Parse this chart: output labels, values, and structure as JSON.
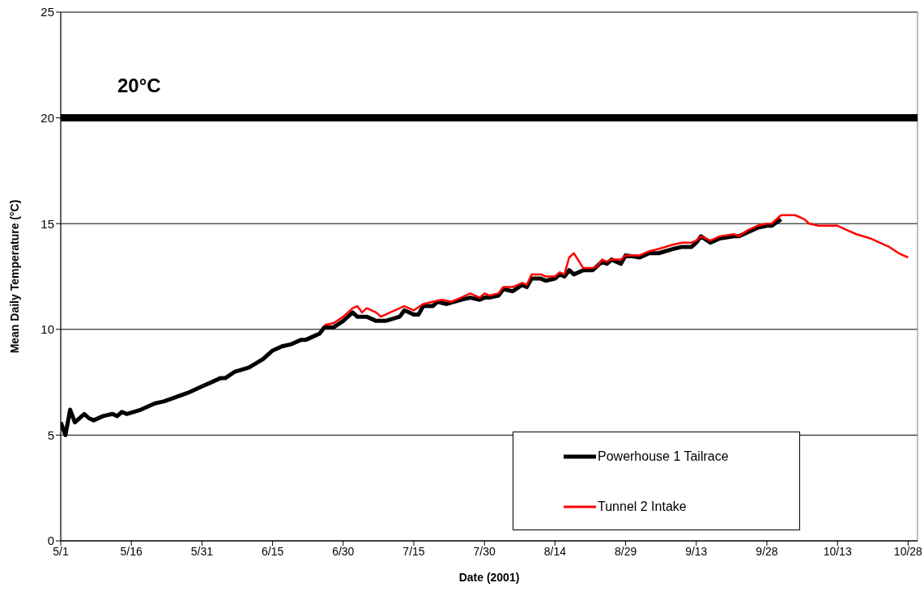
{
  "chart_data": {
    "type": "line",
    "xlabel": "Date (2001)",
    "ylabel": "Mean Daily Temperature (°C)",
    "series": [
      {
        "name": "Powerhouse 1 Tailrace",
        "color": "#000000",
        "x": [
          "2001-05-01",
          "2001-05-02",
          "2001-05-03",
          "2001-05-04",
          "2001-05-06",
          "2001-05-07",
          "2001-05-08",
          "2001-05-10",
          "2001-05-12",
          "2001-05-13",
          "2001-05-14",
          "2001-05-15",
          "2001-05-18",
          "2001-05-21",
          "2001-05-23",
          "2001-05-28",
          "2001-05-31",
          "2001-06-02",
          "2001-06-04",
          "2001-06-05",
          "2001-06-07",
          "2001-06-10",
          "2001-06-13",
          "2001-06-15",
          "2001-06-17",
          "2001-06-19",
          "2001-06-21",
          "2001-06-22",
          "2001-06-24",
          "2001-06-25",
          "2001-06-26",
          "2001-06-28",
          "2001-06-30",
          "2001-07-02",
          "2001-07-03",
          "2001-07-05",
          "2001-07-07",
          "2001-07-09",
          "2001-07-12",
          "2001-07-13",
          "2001-07-15",
          "2001-07-16",
          "2001-07-17",
          "2001-07-19",
          "2001-07-20",
          "2001-07-22",
          "2001-07-25",
          "2001-07-27",
          "2001-07-29",
          "2001-07-30",
          "2001-07-31",
          "2001-08-02",
          "2001-08-03",
          "2001-08-05",
          "2001-08-07",
          "2001-08-08",
          "2001-08-09",
          "2001-08-11",
          "2001-08-12",
          "2001-08-14",
          "2001-08-15",
          "2001-08-16",
          "2001-08-17",
          "2001-08-18",
          "2001-08-20",
          "2001-08-22",
          "2001-08-24",
          "2001-08-25",
          "2001-08-26",
          "2001-08-28",
          "2001-08-29",
          "2001-09-01",
          "2001-09-03",
          "2001-09-05",
          "2001-09-08",
          "2001-09-10",
          "2001-09-12",
          "2001-09-13",
          "2001-09-14",
          "2001-09-16",
          "2001-09-18",
          "2001-09-21",
          "2001-09-22",
          "2001-09-24",
          "2001-09-26",
          "2001-09-28",
          "2001-09-29",
          "2001-10-01"
        ],
        "values": [
          5.6,
          5.0,
          6.2,
          5.6,
          6.0,
          5.8,
          5.7,
          5.9,
          6.0,
          5.9,
          6.1,
          6.0,
          6.2,
          6.5,
          6.6,
          7.0,
          7.3,
          7.5,
          7.7,
          7.7,
          8.0,
          8.2,
          8.6,
          9.0,
          9.2,
          9.3,
          9.5,
          9.5,
          9.7,
          9.8,
          10.1,
          10.1,
          10.4,
          10.8,
          10.6,
          10.6,
          10.4,
          10.4,
          10.6,
          10.9,
          10.7,
          10.7,
          11.1,
          11.1,
          11.3,
          11.2,
          11.4,
          11.5,
          11.4,
          11.5,
          11.5,
          11.6,
          11.9,
          11.8,
          12.1,
          12.0,
          12.4,
          12.4,
          12.3,
          12.4,
          12.6,
          12.5,
          12.8,
          12.6,
          12.8,
          12.8,
          13.2,
          13.1,
          13.3,
          13.1,
          13.5,
          13.4,
          13.6,
          13.6,
          13.8,
          13.9,
          13.9,
          14.1,
          14.4,
          14.1,
          14.3,
          14.4,
          14.4,
          14.6,
          14.8,
          14.9,
          14.9,
          15.2
        ]
      },
      {
        "name": "Tunnel 2 Intake",
        "color": "#ff0000",
        "x": [
          "2001-06-26",
          "2001-06-28",
          "2001-06-30",
          "2001-07-02",
          "2001-07-03",
          "2001-07-04",
          "2001-07-05",
          "2001-07-07",
          "2001-07-08",
          "2001-07-10",
          "2001-07-12",
          "2001-07-13",
          "2001-07-15",
          "2001-07-17",
          "2001-07-19",
          "2001-07-21",
          "2001-07-23",
          "2001-07-25",
          "2001-07-27",
          "2001-07-29",
          "2001-07-30",
          "2001-07-31",
          "2001-08-02",
          "2001-08-03",
          "2001-08-05",
          "2001-08-07",
          "2001-08-08",
          "2001-08-09",
          "2001-08-11",
          "2001-08-12",
          "2001-08-14",
          "2001-08-15",
          "2001-08-16",
          "2001-08-17",
          "2001-08-18",
          "2001-08-20",
          "2001-08-22",
          "2001-08-23",
          "2001-08-24",
          "2001-08-25",
          "2001-08-26",
          "2001-08-28",
          "2001-08-29",
          "2001-09-01",
          "2001-09-03",
          "2001-09-05",
          "2001-09-08",
          "2001-09-10",
          "2001-09-12",
          "2001-09-13",
          "2001-09-14",
          "2001-09-16",
          "2001-09-18",
          "2001-09-21",
          "2001-09-22",
          "2001-09-24",
          "2001-09-26",
          "2001-09-28",
          "2001-09-29",
          "2001-10-01",
          "2001-10-02",
          "2001-10-04",
          "2001-10-06",
          "2001-10-07",
          "2001-10-09",
          "2001-10-11",
          "2001-10-13",
          "2001-10-15",
          "2001-10-17",
          "2001-10-20",
          "2001-10-21",
          "2001-10-23",
          "2001-10-24",
          "2001-10-26",
          "2001-10-28"
        ],
        "values": [
          10.2,
          10.3,
          10.6,
          11.0,
          11.1,
          10.8,
          11.0,
          10.8,
          10.6,
          10.8,
          11.0,
          11.1,
          10.9,
          11.2,
          11.3,
          11.4,
          11.3,
          11.5,
          11.7,
          11.5,
          11.7,
          11.6,
          11.7,
          12.0,
          12.0,
          12.2,
          12.1,
          12.6,
          12.6,
          12.5,
          12.5,
          12.7,
          12.6,
          13.4,
          13.6,
          12.9,
          12.9,
          13.0,
          13.3,
          13.2,
          13.3,
          13.3,
          13.5,
          13.5,
          13.7,
          13.8,
          14.0,
          14.1,
          14.1,
          14.2,
          14.4,
          14.2,
          14.4,
          14.5,
          14.4,
          14.7,
          14.9,
          15.0,
          15.0,
          15.4,
          15.4,
          15.4,
          15.2,
          15.0,
          14.9,
          14.9,
          14.9,
          14.7,
          14.5,
          14.3,
          14.2,
          14.0,
          13.9,
          13.6,
          13.4
        ]
      }
    ],
    "xlim": [
      "2001-05-01",
      "2001-10-30"
    ],
    "xticks": [
      {
        "value": "2001-05-01",
        "label": "5/1"
      },
      {
        "value": "2001-05-16",
        "label": "5/16"
      },
      {
        "value": "2001-05-31",
        "label": "5/31"
      },
      {
        "value": "2001-06-15",
        "label": "6/15"
      },
      {
        "value": "2001-06-30",
        "label": "6/30"
      },
      {
        "value": "2001-07-15",
        "label": "7/15"
      },
      {
        "value": "2001-07-30",
        "label": "7/30"
      },
      {
        "value": "2001-08-14",
        "label": "8/14"
      },
      {
        "value": "2001-08-29",
        "label": "8/29"
      },
      {
        "value": "2001-09-13",
        "label": "9/13"
      },
      {
        "value": "2001-09-28",
        "label": "9/28"
      },
      {
        "value": "2001-10-13",
        "label": "10/13"
      },
      {
        "value": "2001-10-28",
        "label": "10/28"
      }
    ],
    "ylim": [
      0,
      25
    ],
    "yticks": [
      0,
      5,
      10,
      15,
      20,
      25
    ],
    "ref_lines": [
      {
        "axis": "y",
        "value": 20,
        "label": "20°C",
        "color": "#000000"
      }
    ],
    "grid": "y",
    "legend": "bottom right",
    "line_style": "solid",
    "marker": "none"
  }
}
